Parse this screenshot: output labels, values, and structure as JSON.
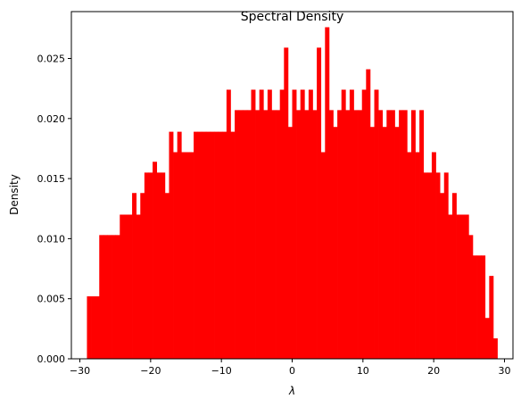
{
  "chart_data": {
    "type": "bar",
    "title": "Spectral Density",
    "xlabel": "λ",
    "ylabel": "Density",
    "xlim": [
      -31.2,
      31.2
    ],
    "ylim": [
      0,
      0.0289
    ],
    "x_ticks": [
      -30,
      -20,
      -10,
      0,
      10,
      20,
      30
    ],
    "x_tick_labels": [
      "−30",
      "−20",
      "−10",
      "0",
      "10",
      "20",
      "30"
    ],
    "y_ticks": [
      0,
      0.005,
      0.01,
      0.015,
      0.02,
      0.025
    ],
    "y_tick_labels": [
      "0.000",
      "0.005",
      "0.010",
      "0.015",
      "0.020",
      "0.025"
    ],
    "grid": false,
    "legend": false,
    "bar_color": "#ff0000",
    "bin_range": [
      -29.0,
      29.0
    ],
    "bin_count": 100,
    "values": [
      0.0052,
      0.0052,
      0.0052,
      0.0103,
      0.0103,
      0.0103,
      0.0103,
      0.0103,
      0.012,
      0.012,
      0.012,
      0.0138,
      0.012,
      0.0138,
      0.0155,
      0.0155,
      0.0164,
      0.0155,
      0.0155,
      0.0138,
      0.0189,
      0.0172,
      0.0189,
      0.0172,
      0.0172,
      0.0172,
      0.0189,
      0.0189,
      0.0189,
      0.0189,
      0.0189,
      0.0189,
      0.0189,
      0.0189,
      0.0224,
      0.0189,
      0.0207,
      0.0207,
      0.0207,
      0.0207,
      0.0224,
      0.0207,
      0.0224,
      0.0207,
      0.0224,
      0.0207,
      0.0207,
      0.0224,
      0.0259,
      0.0193,
      0.0224,
      0.0207,
      0.0224,
      0.0207,
      0.0224,
      0.0207,
      0.0259,
      0.0172,
      0.0276,
      0.0207,
      0.0193,
      0.0207,
      0.0224,
      0.0207,
      0.0224,
      0.0207,
      0.0207,
      0.0224,
      0.0241,
      0.0193,
      0.0224,
      0.0207,
      0.0193,
      0.0207,
      0.0207,
      0.0193,
      0.0207,
      0.0207,
      0.0172,
      0.0207,
      0.0172,
      0.0207,
      0.0155,
      0.0155,
      0.0172,
      0.0155,
      0.0138,
      0.0155,
      0.012,
      0.0138,
      0.012,
      0.012,
      0.012,
      0.0103,
      0.0086,
      0.0086,
      0.0086,
      0.0034,
      0.0069,
      0.0017
    ]
  }
}
